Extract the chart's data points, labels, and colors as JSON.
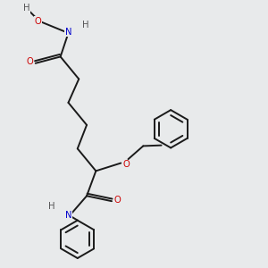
{
  "bg_color": "#e8eaeb",
  "bond_color": "#1a1a1a",
  "atom_colors": {
    "O": "#cc0000",
    "N": "#0000cc",
    "H": "#555555"
  },
  "lw": 1.4,
  "fs": 7.2
}
